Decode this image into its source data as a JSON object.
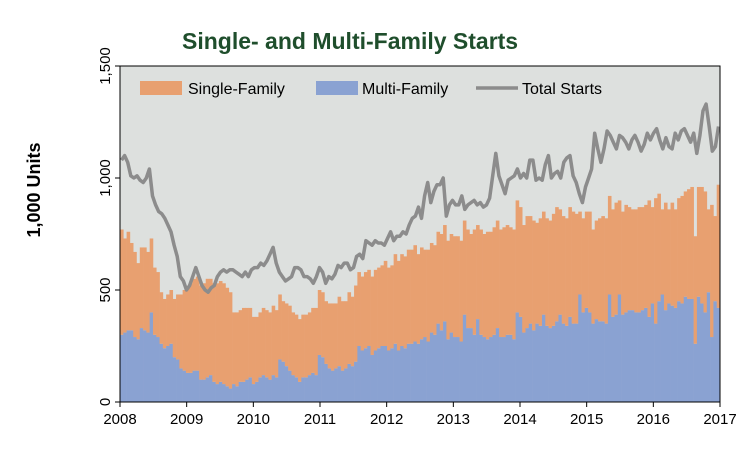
{
  "chart_data": {
    "type": "area",
    "title": "Single- and Multi-Family Starts",
    "ylabel": "1,000 Units",
    "xlabel": "",
    "xlim": [
      2008,
      2017
    ],
    "ylim": [
      0,
      1500
    ],
    "x_ticks": [
      "2008",
      "2009",
      "2010",
      "2011",
      "2012",
      "2013",
      "2014",
      "2015",
      "2016",
      "2017"
    ],
    "y_ticks": [
      "0",
      "500",
      "1,000",
      "1,500"
    ],
    "legend_position": "top",
    "grid": false,
    "colors": {
      "single_family": "#e8a070",
      "multi_family": "#8aa2d2",
      "total": "#8c8c8c",
      "plot_background": "#dde0de",
      "title": "#1f4e2c"
    },
    "series": [
      {
        "name": "Single-Family",
        "type": "stacked-bar",
        "values": [
          470,
          420,
          440,
          390,
          380,
          340,
          360,
          370,
          360,
          330,
          300,
          290,
          230,
          220,
          230,
          240,
          260,
          290,
          330,
          360,
          380,
          400,
          410,
          420,
          420,
          430,
          440,
          430,
          440,
          450,
          450,
          450,
          440,
          430,
          320,
          330,
          320,
          330,
          320,
          310,
          300,
          290,
          290,
          300,
          300,
          300,
          310,
          300,
          290,
          270,
          280,
          290,
          280,
          280,
          280,
          280,
          280,
          280,
          290,
          300,
          290,
          290,
          280,
          290,
          300,
          290,
          310,
          310,
          300,
          320,
          310,
          340,
          330,
          330,
          340,
          340,
          350,
          360,
          360,
          360,
          380,
          370,
          370,
          400,
          400,
          410,
          410,
          420,
          420,
          430,
          400,
          410,
          390,
          410,
          400,
          400,
          410,
          430,
          430,
          440,
          440,
          450,
          450,
          450,
          420,
          440,
          420,
          470,
          420,
          470,
          460,
          480,
          470,
          480,
          480,
          480,
          490,
          490,
          480,
          490,
          500,
          490,
          480,
          500,
          480,
          490,
          450,
          480,
          460,
          480,
          480,
          500,
          510,
          470,
          480,
          480,
          490,
          500,
          490,
          370,
          420,
          430,
          450,
          420,
          440,
          460,
          470,
          470,
          440,
          480,
          500,
          420,
          460,
          480,
          460,
          450,
          460,
          470,
          460,
          460,
          520,
          430,
          560,
          480,
          380,
          480,
          420,
          460,
          440,
          460,
          480,
          470,
          490,
          500,
          480,
          490,
          520,
          540,
          370,
          590,
          380,
          550
        ]
      },
      {
        "name": "Multi-Family",
        "type": "stacked-bar",
        "values": [
          300,
          310,
          320,
          320,
          290,
          280,
          330,
          320,
          310,
          400,
          300,
          290,
          260,
          240,
          250,
          260,
          200,
          190,
          150,
          140,
          130,
          130,
          140,
          140,
          100,
          100,
          110,
          120,
          90,
          80,
          90,
          80,
          70,
          60,
          80,
          70,
          90,
          90,
          100,
          110,
          80,
          90,
          110,
          120,
          110,
          100,
          120,
          110,
          190,
          180,
          160,
          140,
          120,
          110,
          90,
          110,
          110,
          120,
          130,
          120,
          210,
          200,
          170,
          150,
          140,
          150,
          160,
          140,
          150,
          170,
          160,
          180,
          250,
          230,
          240,
          250,
          210,
          230,
          240,
          250,
          250,
          230,
          240,
          260,
          230,
          250,
          240,
          260,
          260,
          270,
          260,
          280,
          290,
          270,
          310,
          300,
          350,
          320,
          360,
          280,
          310,
          290,
          290,
          270,
          390,
          330,
          330,
          300,
          370,
          300,
          290,
          280,
          290,
          300,
          330,
          290,
          290,
          300,
          300,
          280,
          400,
          380,
          310,
          330,
          350,
          320,
          350,
          340,
          390,
          340,
          330,
          340,
          360,
          390,
          350,
          340,
          380,
          350,
          350,
          480,
          400,
          420,
          400,
          350,
          370,
          360,
          360,
          350,
          480,
          380,
          390,
          480,
          390,
          400,
          410,
          410,
          400,
          400,
          410,
          420,
          380,
          440,
          350,
          450,
          480,
          410,
          440,
          430,
          420,
          450,
          440,
          470,
          460,
          460,
          260,
          470,
          440,
          400,
          490,
          290,
          450,
          420
        ]
      },
      {
        "name": "Total Starts",
        "type": "line",
        "values": [
          1080,
          1100,
          1070,
          1010,
          1000,
          1010,
          990,
          980,
          1000,
          1040,
          920,
          880,
          850,
          840,
          820,
          790,
          760,
          700,
          650,
          560,
          540,
          500,
          520,
          560,
          600,
          560,
          520,
          500,
          490,
          510,
          520,
          560,
          580,
          590,
          580,
          590,
          590,
          580,
          570,
          560,
          580,
          560,
          590,
          600,
          600,
          620,
          610,
          630,
          660,
          690,
          620,
          580,
          560,
          540,
          550,
          560,
          600,
          600,
          590,
          560,
          560,
          550,
          530,
          560,
          600,
          580,
          530,
          560,
          550,
          570,
          610,
          600,
          620,
          620,
          590,
          600,
          650,
          660,
          640,
          720,
          710,
          700,
          720,
          710,
          710,
          700,
          730,
          760,
          720,
          740,
          740,
          760,
          750,
          790,
          820,
          830,
          870,
          820,
          920,
          980,
          890,
          940,
          970,
          970,
          1000,
          830,
          880,
          900,
          880,
          880,
          920,
          860,
          880,
          890,
          900,
          880,
          890,
          870,
          880,
          910,
          1010,
          1110,
          1010,
          970,
          930,
          990,
          1000,
          1010,
          1040,
          1000,
          1020,
          1000,
          1080,
          1080,
          990,
          1000,
          990,
          1060,
          1100,
          1000,
          1020,
          1030,
          1000,
          1070,
          1090,
          1100,
          1010,
          980,
          930,
          890,
          960,
          1000,
          1040,
          1200,
          1130,
          1070,
          1130,
          1210,
          1190,
          1160,
          1130,
          1190,
          1180,
          1160,
          1130,
          1170,
          1190,
          1160,
          1120,
          1150,
          1200,
          1170,
          1200,
          1220,
          1170,
          1130,
          1180,
          1140,
          1130,
          1200,
          1170,
          1210,
          1220,
          1190,
          1160,
          1200,
          1110,
          1190,
          1300,
          1330,
          1230,
          1120,
          1140,
          1230
        ]
      }
    ]
  }
}
